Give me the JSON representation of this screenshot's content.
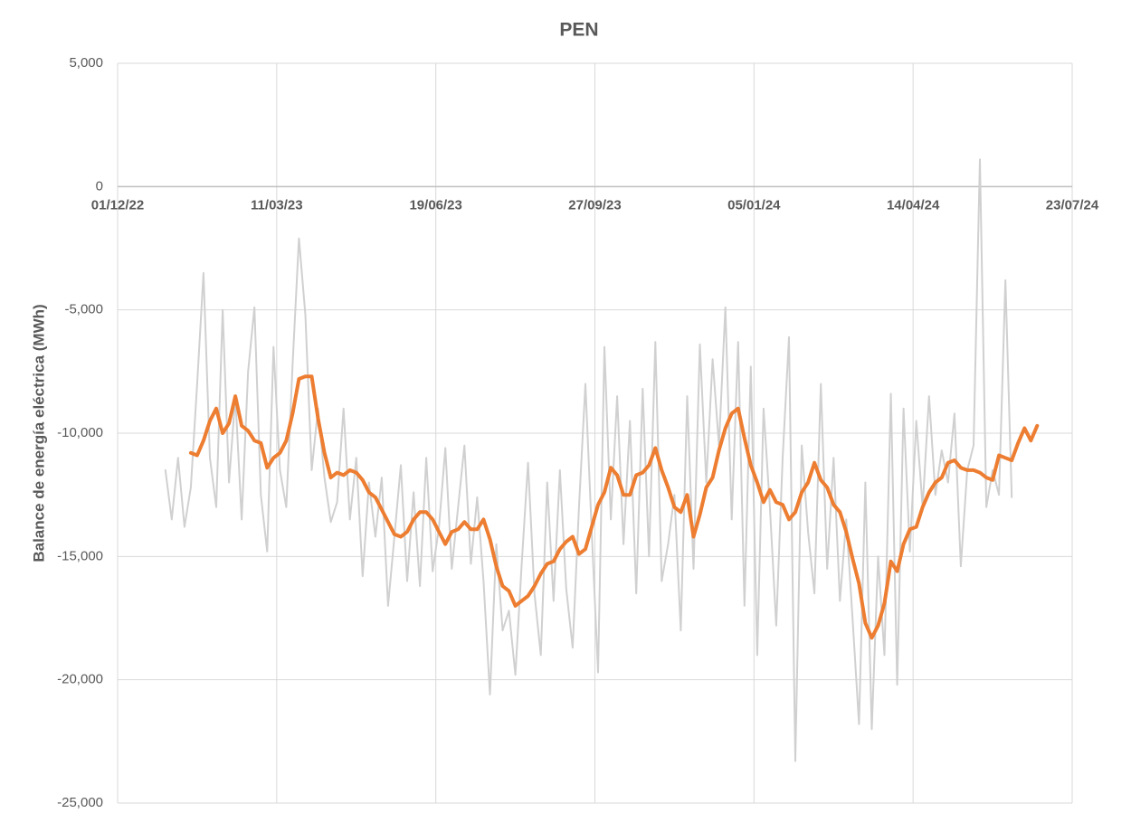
{
  "chart_data": {
    "type": "line",
    "title": "PEN",
    "y_label": "Balance de energía eléctrica (MWh)",
    "x": [
      "2022-12-31",
      "2023-01-04",
      "2023-01-08",
      "2023-01-12",
      "2023-01-16",
      "2023-01-20",
      "2023-01-24",
      "2023-01-28",
      "2023-02-01",
      "2023-02-05",
      "2023-02-09",
      "2023-02-13",
      "2023-02-17",
      "2023-02-21",
      "2023-02-25",
      "2023-03-01",
      "2023-03-05",
      "2023-03-09",
      "2023-03-13",
      "2023-03-17",
      "2023-03-21",
      "2023-03-25",
      "2023-03-29",
      "2023-04-02",
      "2023-04-06",
      "2023-04-10",
      "2023-04-14",
      "2023-04-18",
      "2023-04-22",
      "2023-04-26",
      "2023-04-30",
      "2023-05-04",
      "2023-05-08",
      "2023-05-12",
      "2023-05-16",
      "2023-05-20",
      "2023-05-24",
      "2023-05-28",
      "2023-06-01",
      "2023-06-05",
      "2023-06-09",
      "2023-06-13",
      "2023-06-17",
      "2023-06-21",
      "2023-06-25",
      "2023-06-29",
      "2023-07-03",
      "2023-07-07",
      "2023-07-11",
      "2023-07-15",
      "2023-07-19",
      "2023-07-23",
      "2023-07-27",
      "2023-07-31",
      "2023-08-04",
      "2023-08-08",
      "2023-08-12",
      "2023-08-16",
      "2023-08-20",
      "2023-08-24",
      "2023-08-28",
      "2023-09-01",
      "2023-09-05",
      "2023-09-09",
      "2023-09-13",
      "2023-09-17",
      "2023-09-21",
      "2023-09-25",
      "2023-09-29",
      "2023-10-03",
      "2023-10-07",
      "2023-10-11",
      "2023-10-15",
      "2023-10-19",
      "2023-10-23",
      "2023-10-27",
      "2023-10-31",
      "2023-11-04",
      "2023-11-08",
      "2023-11-12",
      "2023-11-16",
      "2023-11-20",
      "2023-11-24",
      "2023-11-28",
      "2023-12-02",
      "2023-12-06",
      "2023-12-10",
      "2023-12-14",
      "2023-12-18",
      "2023-12-22",
      "2023-12-26",
      "2023-12-30",
      "2024-01-03",
      "2024-01-07",
      "2024-01-11",
      "2024-01-15",
      "2024-01-19",
      "2024-01-23",
      "2024-01-27",
      "2024-01-31",
      "2024-02-04",
      "2024-02-08",
      "2024-02-12",
      "2024-02-16",
      "2024-02-20",
      "2024-02-24",
      "2024-02-28",
      "2024-03-03",
      "2024-03-07",
      "2024-03-11",
      "2024-03-15",
      "2024-03-19",
      "2024-03-23",
      "2024-03-27",
      "2024-03-31",
      "2024-04-04",
      "2024-04-08",
      "2024-04-12",
      "2024-04-16",
      "2024-04-20",
      "2024-04-24",
      "2024-04-28",
      "2024-05-02",
      "2024-05-06",
      "2024-05-10",
      "2024-05-14",
      "2024-05-18",
      "2024-05-22",
      "2024-05-26",
      "2024-05-30",
      "2024-06-03",
      "2024-06-07",
      "2024-06-11",
      "2024-06-15",
      "2024-06-19",
      "2024-06-23",
      "2024-06-27",
      "2024-07-01",
      "2024-07-05"
    ],
    "series": [
      {
        "color": "#d0d0d0",
        "width": 2,
        "values": [
          -11500,
          -13500,
          -11000,
          -13800,
          -12200,
          -8000,
          -3500,
          -11000,
          -13000,
          -5000,
          -12000,
          -8500,
          -13500,
          -7500,
          -4900,
          -12500,
          -14800,
          -6500,
          -11500,
          -13000,
          -7200,
          -2100,
          -5200,
          -11500,
          -9000,
          -11800,
          -13600,
          -12800,
          -9000,
          -13500,
          -11000,
          -15800,
          -12000,
          -14200,
          -11800,
          -17000,
          -14200,
          -11300,
          -16000,
          -12400,
          -16200,
          -11000,
          -15600,
          -13800,
          -10600,
          -15500,
          -13000,
          -10500,
          -15300,
          -12600,
          -16000,
          -20600,
          -14500,
          -18000,
          -17200,
          -19800,
          -15300,
          -11200,
          -16500,
          -19000,
          -12000,
          -16800,
          -11500,
          -16300,
          -18700,
          -13000,
          -8000,
          -14000,
          -19700,
          -6500,
          -13500,
          -8500,
          -14500,
          -9500,
          -16500,
          -8200,
          -15000,
          -6300,
          -16000,
          -14500,
          -12500,
          -18000,
          -8500,
          -15500,
          -6400,
          -12000,
          -7000,
          -10500,
          -4900,
          -13500,
          -6300,
          -17000,
          -7300,
          -19000,
          -9000,
          -13000,
          -17800,
          -11000,
          -6100,
          -23300,
          -10500,
          -14000,
          -16500,
          -8000,
          -15500,
          -11000,
          -16800,
          -13500,
          -17600,
          -21800,
          -12000,
          -22000,
          -15000,
          -19000,
          -8400,
          -20200,
          -9000,
          -14800,
          -9500,
          -13000,
          -8500,
          -12500,
          -10700,
          -12000,
          -9200,
          -15400,
          -11500,
          -10500,
          1100,
          -13000,
          -11500,
          -12500,
          -3800,
          -12600,
          null,
          null,
          null,
          null,
          null
        ]
      },
      {
        "color": "#ed7d31",
        "width": 4,
        "values": [
          null,
          null,
          null,
          null,
          -10800,
          -10900,
          -10300,
          -9500,
          -9000,
          -10000,
          -9600,
          -8500,
          -9700,
          -9900,
          -10300,
          -10400,
          -11400,
          -11000,
          -10800,
          -10300,
          -9200,
          -7800,
          -7700,
          -7700,
          -9400,
          -10800,
          -11800,
          -11600,
          -11700,
          -11500,
          -11600,
          -11900,
          -12400,
          -12600,
          -13100,
          -13600,
          -14100,
          -14200,
          -14000,
          -13500,
          -13200,
          -13200,
          -13500,
          -14000,
          -14500,
          -14000,
          -13900,
          -13600,
          -13900,
          -13900,
          -13500,
          -14300,
          -15400,
          -16200,
          -16400,
          -17000,
          -16800,
          -16600,
          -16200,
          -15700,
          -15300,
          -15200,
          -14700,
          -14400,
          -14200,
          -14900,
          -14700,
          -13800,
          -12900,
          -12400,
          -11400,
          -11700,
          -12500,
          -12500,
          -11700,
          -11600,
          -11300,
          -10600,
          -11500,
          -12200,
          -13000,
          -13200,
          -12500,
          -14200,
          -13300,
          -12200,
          -11800,
          -10700,
          -9800,
          -9200,
          -9000,
          -10200,
          -11300,
          -12000,
          -12800,
          -12300,
          -12800,
          -12900,
          -13500,
          -13200,
          -12400,
          -12000,
          -11200,
          -11900,
          -12200,
          -12900,
          -13200,
          -14000,
          -15100,
          -16100,
          -17700,
          -18300,
          -17800,
          -16900,
          -15200,
          -15600,
          -14500,
          -13900,
          -13800,
          -13000,
          -12400,
          -12000,
          -11800,
          -11200,
          -11100,
          -11400,
          -11500,
          -11500,
          -11600,
          -11800,
          -11900,
          -10900,
          -11000,
          -11100,
          -10400,
          -9800,
          -10300,
          -9700,
          null
        ]
      }
    ],
    "xlim": [
      "2022-12-01",
      "2024-07-23"
    ],
    "xticks": [
      {
        "value": "2022-12-01",
        "label": "01/12/22"
      },
      {
        "value": "2023-03-11",
        "label": "11/03/23"
      },
      {
        "value": "2023-06-19",
        "label": "19/06/23"
      },
      {
        "value": "2023-09-27",
        "label": "27/09/23"
      },
      {
        "value": "2024-01-05",
        "label": "05/01/24"
      },
      {
        "value": "2024-04-14",
        "label": "14/04/24"
      },
      {
        "value": "2024-07-23",
        "label": "23/07/24"
      }
    ],
    "ylim": [
      -25000,
      5000
    ],
    "yticks": [
      {
        "value": -25000,
        "label": "-25,000"
      },
      {
        "value": -20000,
        "label": "-20,000"
      },
      {
        "value": -15000,
        "label": "-15,000"
      },
      {
        "value": -10000,
        "label": "-10,000"
      },
      {
        "value": -5000,
        "label": "-5,000"
      },
      0,
      {
        "value": 5000,
        "label": "5,000"
      }
    ],
    "grid": true
  }
}
